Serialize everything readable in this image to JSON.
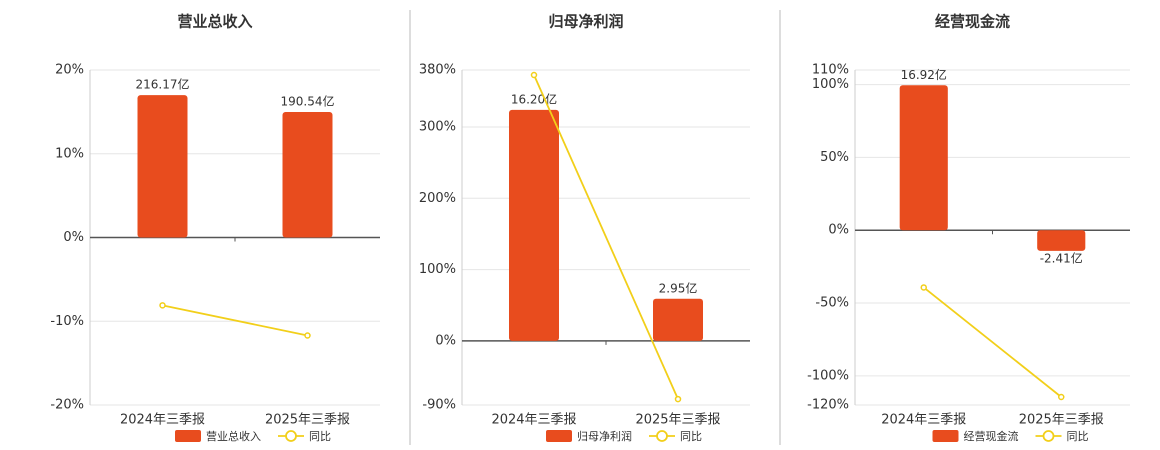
{
  "chart_data": [
    {
      "type": "bar-line",
      "title": "营业总收入",
      "categories": [
        "2024年三季报",
        "2025年三季报"
      ],
      "series": [
        {
          "name": "营业总收入",
          "type": "bar",
          "axis": "y2",
          "color": "#e84c1e",
          "values": [
            216.17,
            190.54
          ],
          "value_labels": [
            "216.17亿",
            "190.54亿"
          ]
        },
        {
          "name": "同比",
          "type": "line",
          "color": "#f2cf1a",
          "values": [
            -8.1,
            -11.7
          ]
        }
      ],
      "ylim": [
        -20,
        20
      ],
      "yticks": [
        {
          "value": -20,
          "label": "-20%"
        },
        {
          "value": -10,
          "label": "-10%"
        },
        {
          "value": 0,
          "label": "0%"
        },
        {
          "value": 10,
          "label": "10%"
        },
        {
          "value": 20,
          "label": "20%"
        }
      ],
      "y2lim": [
        -254.4,
        254.4
      ],
      "grid": true
    },
    {
      "type": "bar-line",
      "title": "归母净利润",
      "categories": [
        "2024年三季报",
        "2025年三季报"
      ],
      "series": [
        {
          "name": "归母净利润",
          "type": "bar",
          "axis": "y2",
          "color": "#e84c1e",
          "values": [
            16.2,
            2.95
          ],
          "value_labels": [
            "16.20亿",
            "2.95亿"
          ]
        },
        {
          "name": "同比",
          "type": "line",
          "color": "#f2cf1a",
          "values": [
            373,
            -81.7
          ]
        }
      ],
      "ylim": [
        -90,
        380
      ],
      "yticks": [
        {
          "value": -90,
          "label": "-90%"
        },
        {
          "value": 0,
          "label": "0%"
        },
        {
          "value": 100,
          "label": "100%"
        },
        {
          "value": 200,
          "label": "200%"
        },
        {
          "value": 300,
          "label": "300%"
        },
        {
          "value": 380,
          "label": "380%"
        }
      ],
      "y2lim": [
        -4.5,
        19
      ],
      "grid": true
    },
    {
      "type": "bar-line",
      "title": "经营现金流",
      "categories": [
        "2024年三季报",
        "2025年三季报"
      ],
      "series": [
        {
          "name": "经营现金流",
          "type": "bar",
          "axis": "y2",
          "color": "#e84c1e",
          "values": [
            16.92,
            -2.41
          ],
          "value_labels": [
            "16.92亿",
            "-2.41亿"
          ]
        },
        {
          "name": "同比",
          "type": "line",
          "color": "#f2cf1a",
          "values": [
            -39.3,
            -114.5
          ]
        }
      ],
      "ylim": [
        -120,
        110
      ],
      "yticks": [
        {
          "value": -120,
          "label": "-120%"
        },
        {
          "value": -100,
          "label": "-100%"
        },
        {
          "value": -50,
          "label": "-50%"
        },
        {
          "value": 0,
          "label": "0%"
        },
        {
          "value": 50,
          "label": "50%"
        },
        {
          "value": 100,
          "label": "100%"
        },
        {
          "value": 110,
          "label": "110%"
        }
      ],
      "y2lim": [
        -20.4,
        18.7
      ],
      "grid": true
    }
  ]
}
